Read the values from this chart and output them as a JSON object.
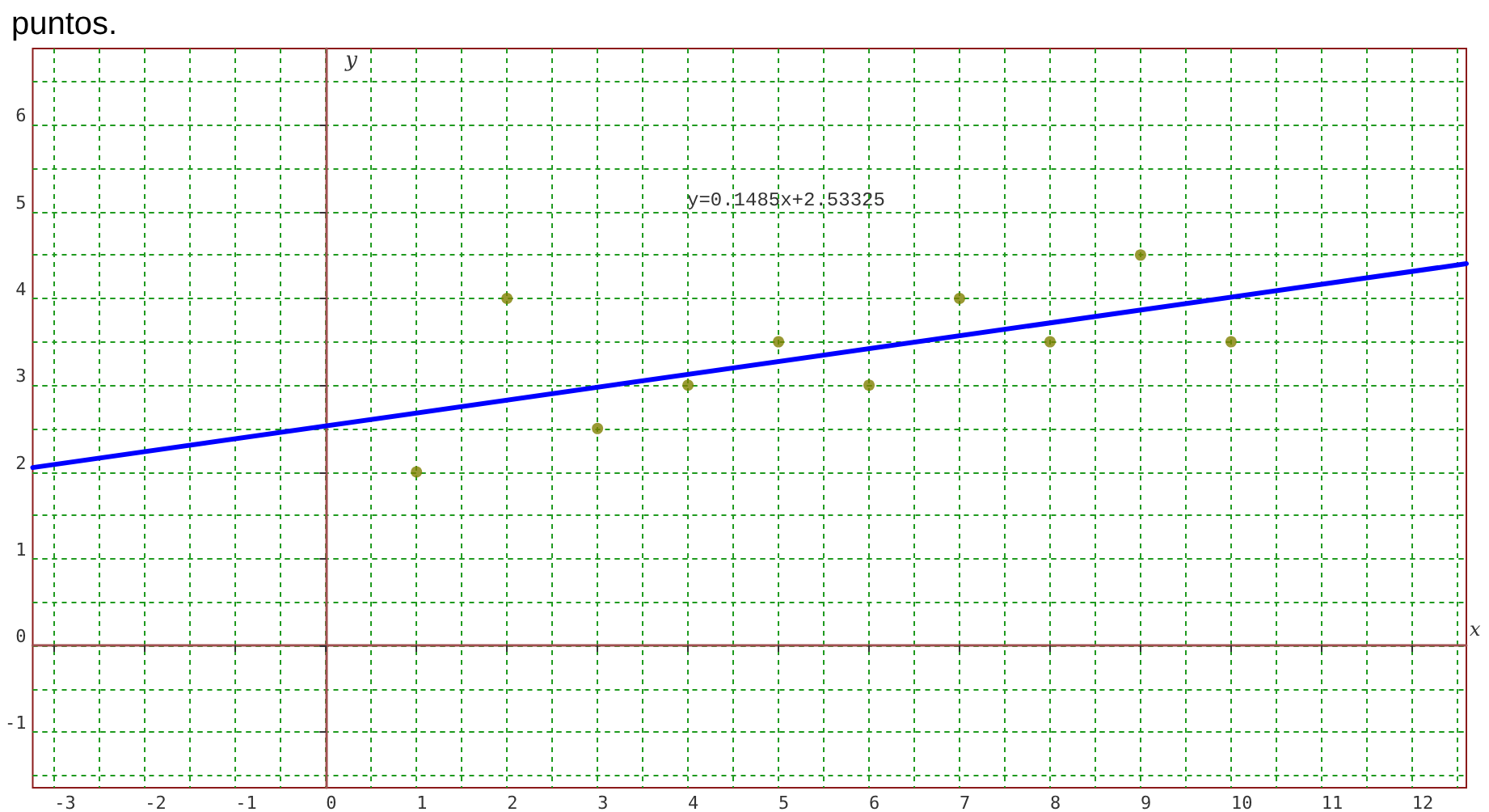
{
  "chart_data": {
    "type": "scatter",
    "title": "puntos.",
    "xlabel": "x",
    "ylabel": "y",
    "annotations": [
      "y=0.1485x+2.53325"
    ],
    "x": [
      1,
      2,
      3,
      4,
      5,
      6,
      7,
      8,
      9,
      10
    ],
    "series": [
      {
        "color": "#808000",
        "values": [
          2,
          4,
          2.5,
          3,
          3.5,
          3,
          4,
          3.5,
          4.5,
          3.5
        ]
      },
      {
        "type": "line",
        "color": "#0000ff",
        "x": [
          -3.24,
          12.6
        ],
        "values": [
          2.05,
          4.4
        ],
        "marker": "none"
      }
    ],
    "xlim": [
      -3.24,
      12.6
    ],
    "ylim": [
      -1.64,
      6.88
    ],
    "xticks": [
      -3,
      {
        "value": -2.5,
        "label": null
      },
      -2,
      {
        "value": -1.5,
        "label": null
      },
      -1,
      {
        "value": -0.5,
        "label": null
      },
      0,
      {
        "value": 0.5,
        "label": null
      },
      1,
      {
        "value": 1.5,
        "label": null
      },
      2,
      {
        "value": 2.5,
        "label": null
      },
      3,
      {
        "value": 3.5,
        "label": null
      },
      4,
      {
        "value": 4.5,
        "label": null
      },
      5,
      {
        "value": 5.5,
        "label": null
      },
      6,
      {
        "value": 6.5,
        "label": null
      },
      7,
      {
        "value": 7.5,
        "label": null
      },
      8,
      {
        "value": 8.5,
        "label": null
      },
      9,
      {
        "value": 9.5,
        "label": null
      },
      10,
      {
        "value": 10.5,
        "label": null
      },
      11,
      {
        "value": 11.5,
        "label": null
      },
      12,
      {
        "value": 12.5,
        "label": null
      }
    ],
    "yticks": [
      {
        "value": -1.5,
        "label": null
      },
      -1,
      {
        "value": -0.5,
        "label": null
      },
      0,
      {
        "value": 0.5,
        "label": null
      },
      1,
      {
        "value": 1.5,
        "label": null
      },
      2,
      {
        "value": 2.5,
        "label": null
      },
      3,
      {
        "value": 3.5,
        "label": null
      },
      4,
      {
        "value": 4.5,
        "label": null
      },
      5,
      {
        "value": 5.5,
        "label": null
      },
      6,
      {
        "value": 6.5,
        "label": null
      }
    ],
    "grid": true,
    "marker": "circle"
  }
}
